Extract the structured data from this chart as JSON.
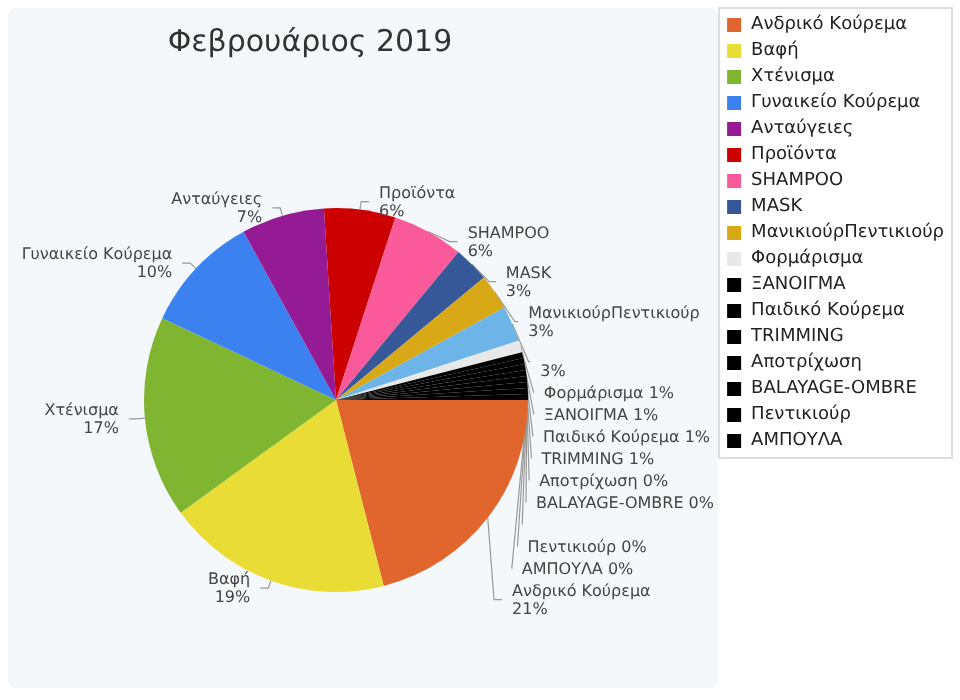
{
  "chart_data": {
    "type": "pie",
    "title": "Φεβρουάριος 2019",
    "categories": [
      "Ανδρικό Κούρεμα",
      "Βαφή",
      "Χτένισμα",
      "Γυναικείο Κούρεμα",
      "Ανταύγειες",
      "Προϊόντα",
      "SHAMPOO",
      "MASK",
      "ΜανικιούρΠεντικιούρ",
      null,
      "Φορμάρισμα",
      "ΞΑΝΟΙΓΜΑ",
      "Παιδικό Κούρεμα",
      "TRIMMING",
      "Αποτρίχωση",
      "BALAYAGE-OMBRE",
      null,
      "Πεντικιούρ",
      "ΑΜΠΟΥΛΑ"
    ],
    "values": [
      21,
      19,
      17,
      10,
      7,
      6,
      6,
      3,
      3,
      3,
      1,
      0.5,
      0.5,
      0.5,
      0.5,
      0.5,
      0.5,
      0.5,
      0.5
    ],
    "value_labels": [
      "21%",
      "19%",
      "17%",
      "10%",
      "7%",
      "6%",
      "6%",
      "3%",
      "3%",
      "3%",
      "1%",
      "1%",
      "1%",
      "1%",
      "0%",
      "0%",
      null,
      "0%",
      "0%"
    ],
    "colors": [
      "#e0662e",
      "#e8dc35",
      "#80b531",
      "#3b82f0",
      "#941b94",
      "#cc0000",
      "#fb5a9a",
      "#365898",
      "#d8a817",
      "#6db4e8",
      "#e8e8e8",
      "#000000",
      "#000000",
      "#000000",
      "#000000",
      "#000000",
      "#000000",
      "#000000",
      "#000000"
    ],
    "legend": "right"
  }
}
